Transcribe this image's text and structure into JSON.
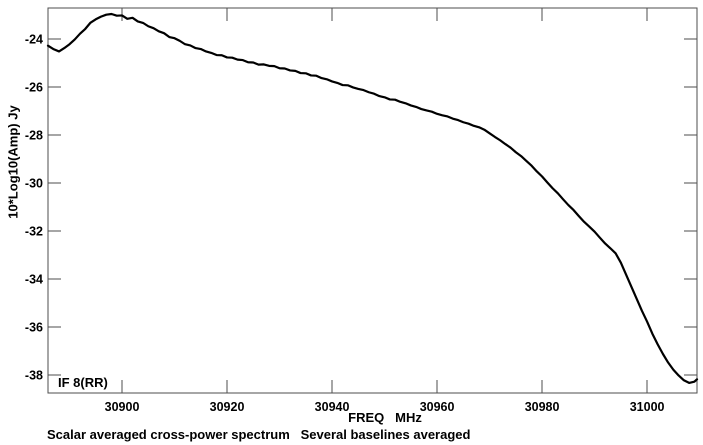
{
  "window": {
    "background": "#ffffff",
    "text_color": "#000000"
  },
  "chart_data": {
    "type": "line",
    "title": "Scalar averaged cross-power spectrum   Several baselines averaged",
    "xlabel": "FREQ   MHz",
    "ylabel": "10*Log10(Amp) Jy",
    "annotation": "IF 8(RR)",
    "grid": false,
    "legend": "none",
    "frame_color": "#4d4d4d",
    "line_color": "#000000",
    "xlim": [
      30885.9,
      31009.5
    ],
    "ylim": [
      -38.75,
      -22.71
    ],
    "x_ticks": [
      30900,
      30920,
      30940,
      30960,
      30980,
      31000
    ],
    "y_ticks": [
      -24,
      -26,
      -28,
      -30,
      -32,
      -34,
      -36,
      -38
    ],
    "series": [
      {
        "name": "averaged cross-power spectrum",
        "points": [
          [
            30885.9,
            -24.28
          ],
          [
            30887,
            -24.43
          ],
          [
            30888,
            -24.52
          ],
          [
            30889,
            -24.38
          ],
          [
            30890,
            -24.22
          ],
          [
            30891,
            -24.02
          ],
          [
            30892,
            -23.78
          ],
          [
            30893,
            -23.58
          ],
          [
            30894,
            -23.32
          ],
          [
            30895,
            -23.18
          ],
          [
            30896,
            -23.07
          ],
          [
            30897,
            -22.99
          ],
          [
            30898,
            -22.96
          ],
          [
            30899,
            -23.03
          ],
          [
            30900,
            -23.02
          ],
          [
            30901,
            -23.16
          ],
          [
            30902,
            -23.12
          ],
          [
            30903,
            -23.27
          ],
          [
            30904,
            -23.33
          ],
          [
            30905,
            -23.47
          ],
          [
            30906,
            -23.55
          ],
          [
            30907,
            -23.68
          ],
          [
            30908,
            -23.76
          ],
          [
            30909,
            -23.92
          ],
          [
            30910,
            -23.97
          ],
          [
            30911,
            -24.08
          ],
          [
            30912,
            -24.22
          ],
          [
            30913,
            -24.27
          ],
          [
            30914,
            -24.38
          ],
          [
            30915,
            -24.42
          ],
          [
            30916,
            -24.52
          ],
          [
            30917,
            -24.58
          ],
          [
            30918,
            -24.67
          ],
          [
            30919,
            -24.68
          ],
          [
            30920,
            -24.77
          ],
          [
            30921,
            -24.78
          ],
          [
            30922,
            -24.86
          ],
          [
            30923,
            -24.88
          ],
          [
            30924,
            -24.97
          ],
          [
            30925,
            -24.98
          ],
          [
            30926,
            -25.07
          ],
          [
            30927,
            -25.06
          ],
          [
            30928,
            -25.12
          ],
          [
            30929,
            -25.13
          ],
          [
            30930,
            -25.22
          ],
          [
            30931,
            -25.23
          ],
          [
            30932,
            -25.31
          ],
          [
            30933,
            -25.33
          ],
          [
            30934,
            -25.42
          ],
          [
            30935,
            -25.43
          ],
          [
            30936,
            -25.52
          ],
          [
            30937,
            -25.53
          ],
          [
            30938,
            -25.63
          ],
          [
            30939,
            -25.68
          ],
          [
            30940,
            -25.77
          ],
          [
            30941,
            -25.83
          ],
          [
            30942,
            -25.92
          ],
          [
            30943,
            -25.93
          ],
          [
            30944,
            -26.02
          ],
          [
            30945,
            -26.08
          ],
          [
            30946,
            -26.13
          ],
          [
            30947,
            -26.22
          ],
          [
            30948,
            -26.28
          ],
          [
            30949,
            -26.38
          ],
          [
            30950,
            -26.43
          ],
          [
            30951,
            -26.52
          ],
          [
            30952,
            -26.53
          ],
          [
            30953,
            -26.62
          ],
          [
            30954,
            -26.68
          ],
          [
            30955,
            -26.77
          ],
          [
            30956,
            -26.83
          ],
          [
            30957,
            -26.92
          ],
          [
            30958,
            -26.98
          ],
          [
            30959,
            -27.03
          ],
          [
            30960,
            -27.12
          ],
          [
            30961,
            -27.18
          ],
          [
            30962,
            -27.23
          ],
          [
            30963,
            -27.32
          ],
          [
            30964,
            -27.38
          ],
          [
            30965,
            -27.47
          ],
          [
            30966,
            -27.53
          ],
          [
            30967,
            -27.62
          ],
          [
            30968,
            -27.68
          ],
          [
            30969,
            -27.78
          ],
          [
            30970,
            -27.93
          ],
          [
            30971,
            -28.08
          ],
          [
            30972,
            -28.22
          ],
          [
            30973,
            -28.38
          ],
          [
            30974,
            -28.53
          ],
          [
            30975,
            -28.72
          ],
          [
            30976,
            -28.88
          ],
          [
            30977,
            -29.08
          ],
          [
            30978,
            -29.28
          ],
          [
            30979,
            -29.52
          ],
          [
            30980,
            -29.73
          ],
          [
            30981,
            -29.98
          ],
          [
            30982,
            -30.22
          ],
          [
            30983,
            -30.43
          ],
          [
            30984,
            -30.68
          ],
          [
            30985,
            -30.92
          ],
          [
            30986,
            -31.13
          ],
          [
            30987,
            -31.38
          ],
          [
            30988,
            -31.62
          ],
          [
            30989,
            -31.82
          ],
          [
            30990,
            -32.03
          ],
          [
            30991,
            -32.28
          ],
          [
            30992,
            -32.52
          ],
          [
            30993,
            -32.72
          ],
          [
            30994,
            -32.93
          ],
          [
            30995,
            -33.32
          ],
          [
            30996,
            -33.82
          ],
          [
            30997,
            -34.32
          ],
          [
            30998,
            -34.82
          ],
          [
            30999,
            -35.32
          ],
          [
            31000,
            -35.78
          ],
          [
            31001,
            -36.28
          ],
          [
            31002,
            -36.72
          ],
          [
            31003,
            -37.12
          ],
          [
            31004,
            -37.48
          ],
          [
            31005,
            -37.78
          ],
          [
            31006,
            -38.02
          ],
          [
            31007,
            -38.22
          ],
          [
            31008,
            -38.33
          ],
          [
            31009,
            -38.28
          ],
          [
            31009.5,
            -38.18
          ]
        ]
      }
    ]
  }
}
